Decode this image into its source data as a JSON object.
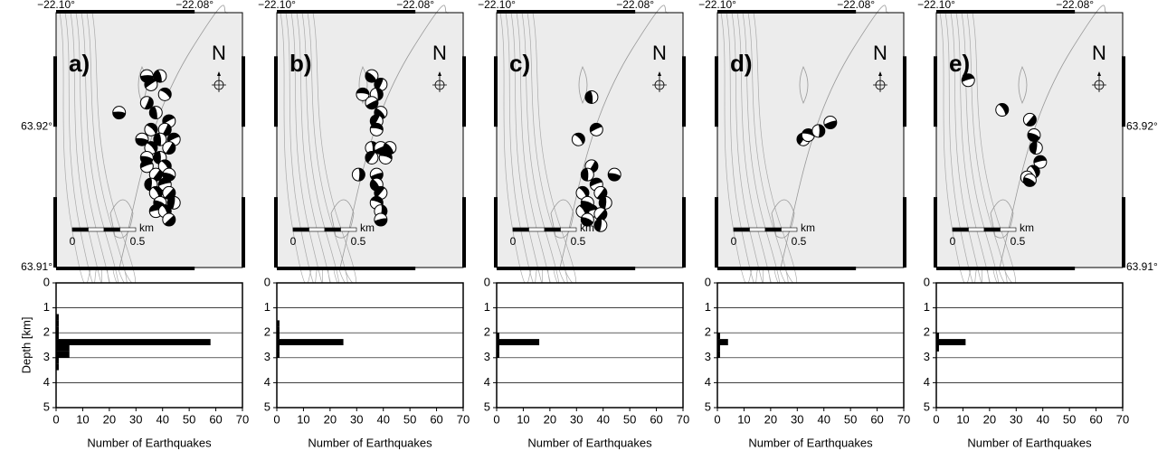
{
  "map_axes": {
    "xlim": [
      -22.1,
      -22.0731
    ],
    "ylim": [
      63.91,
      63.9281
    ],
    "xticks": [
      {
        "value": -22.1,
        "label": "−22.10°"
      },
      {
        "value": -22.08,
        "label": "−22.08°"
      }
    ],
    "yticks": [
      {
        "value": 63.91,
        "label": "63.91°"
      },
      {
        "value": 63.92,
        "label": "63.92°"
      }
    ],
    "north": "N",
    "scale_unit": "km",
    "scale_labels": [
      "0",
      "0.5"
    ]
  },
  "maps": [
    {
      "label": "a)",
      "lon": [
        -22.0869,
        -22.085,
        -22.0863,
        -22.0843,
        -22.0869,
        -22.0909,
        -22.0856,
        -22.0837,
        -22.0863,
        -22.0843,
        -22.0876,
        -22.085,
        -22.083,
        -22.0863,
        -22.0837,
        -22.0869,
        -22.085,
        -22.0869,
        -22.0843,
        -22.0856,
        -22.0837,
        -22.0863,
        -22.0843,
        -22.0856,
        -22.0837,
        -22.085,
        -22.083,
        -22.0856,
        -22.0843,
        -22.0837
      ],
      "lat": [
        63.9236,
        63.9236,
        63.923,
        63.9223,
        63.9217,
        63.921,
        63.921,
        63.9204,
        63.9198,
        63.9198,
        63.9191,
        63.9191,
        63.9191,
        63.9185,
        63.9185,
        63.9178,
        63.9178,
        63.9172,
        63.9172,
        63.9166,
        63.9166,
        63.9159,
        63.9159,
        63.9153,
        63.9153,
        63.9146,
        63.9146,
        63.914,
        63.914,
        63.9134
      ]
    },
    {
      "label": "b)",
      "lon": [
        -22.0863,
        -22.085,
        -22.0876,
        -22.0856,
        -22.0863,
        -22.085,
        -22.0856,
        -22.0856,
        -22.0863,
        -22.085,
        -22.0837,
        -22.0863,
        -22.0843,
        -22.0882,
        -22.0856,
        -22.0856,
        -22.085,
        -22.0856,
        -22.085,
        -22.085
      ],
      "lat": [
        63.9236,
        63.923,
        63.9223,
        63.9223,
        63.9217,
        63.921,
        63.9204,
        63.9198,
        63.9185,
        63.9185,
        63.9185,
        63.9178,
        63.9178,
        63.9166,
        63.9166,
        63.9159,
        63.9153,
        63.9146,
        63.914,
        63.9134
      ]
    },
    {
      "label": "c)",
      "lon": [
        -22.0863,
        -22.0856,
        -22.0882,
        -22.0863,
        -22.083,
        -22.0869,
        -22.0856,
        -22.0876,
        -22.085,
        -22.0869,
        -22.0843,
        -22.0863,
        -22.0876,
        -22.085,
        -22.0869,
        -22.085
      ],
      "lat": [
        63.9221,
        63.9198,
        63.9191,
        63.9172,
        63.9166,
        63.9166,
        63.9159,
        63.9153,
        63.9153,
        63.9146,
        63.9146,
        63.914,
        63.914,
        63.9138,
        63.9134,
        63.913
      ]
    },
    {
      "label": "d)",
      "lon": [
        -22.0876,
        -22.0869,
        -22.0854,
        -22.0837
      ],
      "lat": [
        63.9191,
        63.9194,
        63.9197,
        63.9203
      ]
    },
    {
      "label": "e)",
      "lon": [
        -22.0954,
        -22.0905,
        -22.0865,
        -22.0859,
        -22.0856,
        -22.085,
        -22.086,
        -22.0869,
        -22.0865
      ],
      "lat": [
        63.9233,
        63.9212,
        63.9205,
        63.9194,
        63.9185,
        63.9175,
        63.9168,
        63.9164,
        63.9162
      ]
    }
  ],
  "chart_data": [
    {
      "type": "histogram",
      "orientation": "horizontal",
      "color": "#000000",
      "grid": true,
      "bins": [
        1.25,
        1.5,
        1.75,
        2.0,
        2.25,
        2.5,
        2.75,
        3.0,
        3.25,
        3.5
      ],
      "counts": [
        1,
        1,
        1,
        1,
        58,
        5,
        5,
        1,
        1
      ],
      "xlim": [
        0,
        70
      ],
      "xticks": [
        0,
        10,
        20,
        30,
        40,
        50,
        60,
        70
      ],
      "ylim": [
        0,
        5
      ],
      "yticks": [
        0,
        1,
        2,
        3,
        4,
        5
      ],
      "y_inverted": true,
      "xlabel": "Number of Earthquakes",
      "ylabel": "Depth [km]"
    },
    {
      "type": "histogram",
      "orientation": "horizontal",
      "color": "#000000",
      "grid": true,
      "bins": [
        1.25,
        1.5,
        1.75,
        2.0,
        2.25,
        2.5,
        2.75,
        3.0,
        3.25,
        3.5
      ],
      "counts": [
        0,
        1,
        1,
        1,
        25,
        1,
        1,
        0,
        0
      ],
      "xlim": [
        0,
        70
      ],
      "xticks": [
        0,
        10,
        20,
        30,
        40,
        50,
        60,
        70
      ],
      "ylim": [
        0,
        5
      ],
      "yticks": [
        0,
        1,
        2,
        3,
        4,
        5
      ],
      "y_inverted": true,
      "xlabel": "Number of Earthquakes"
    },
    {
      "type": "histogram",
      "orientation": "horizontal",
      "color": "#000000",
      "grid": true,
      "bins": [
        1.25,
        1.5,
        1.75,
        2.0,
        2.25,
        2.5,
        2.75,
        3.0,
        3.25,
        3.5
      ],
      "counts": [
        0,
        0,
        0,
        1,
        16,
        1,
        1,
        0,
        0
      ],
      "xlim": [
        0,
        70
      ],
      "xticks": [
        0,
        10,
        20,
        30,
        40,
        50,
        60,
        70
      ],
      "ylim": [
        0,
        5
      ],
      "yticks": [
        0,
        1,
        2,
        3,
        4,
        5
      ],
      "y_inverted": true,
      "xlabel": "Number of Earthquakes"
    },
    {
      "type": "histogram",
      "orientation": "horizontal",
      "color": "#000000",
      "grid": true,
      "bins": [
        1.25,
        1.5,
        1.75,
        2.0,
        2.25,
        2.5,
        2.75,
        3.0,
        3.25,
        3.5
      ],
      "counts": [
        0,
        0,
        0,
        1,
        4,
        1,
        1,
        0,
        0
      ],
      "xlim": [
        0,
        70
      ],
      "xticks": [
        0,
        10,
        20,
        30,
        40,
        50,
        60,
        70
      ],
      "ylim": [
        0,
        5
      ],
      "yticks": [
        0,
        1,
        2,
        3,
        4,
        5
      ],
      "y_inverted": true,
      "xlabel": "Number of Earthquakes"
    },
    {
      "type": "histogram",
      "orientation": "horizontal",
      "color": "#000000",
      "grid": true,
      "bins": [
        1.25,
        1.5,
        1.75,
        2.0,
        2.25,
        2.5,
        2.75,
        3.0,
        3.25,
        3.5
      ],
      "counts": [
        0,
        0,
        0,
        1,
        11,
        1,
        0,
        0,
        0
      ],
      "xlim": [
        0,
        70
      ],
      "xticks": [
        0,
        10,
        20,
        30,
        40,
        50,
        60,
        70
      ],
      "ylim": [
        0,
        5
      ],
      "yticks": [
        0,
        1,
        2,
        3,
        4,
        5
      ],
      "y_inverted": true,
      "xlabel": "Number of Earthquakes"
    }
  ]
}
